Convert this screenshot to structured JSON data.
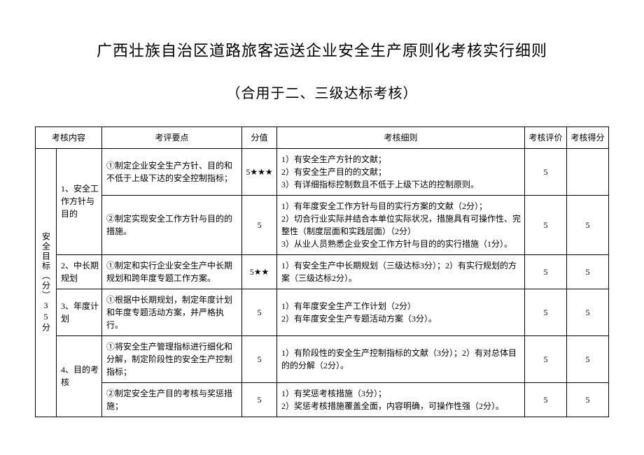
{
  "title": "广西壮族自治区道路旅客运送企业安全生产原则化考核实行细则",
  "subtitle": "（合用于二、三级达标考核）",
  "headers": {
    "category": "考核内容",
    "point": "考评要点",
    "score": "分值",
    "detail": "考核细则",
    "eval": "考核评价",
    "result": "考核得分"
  },
  "categoryLabel": "安全目标（分）35分",
  "rows": [
    {
      "item": "1、安全工作方针与目的",
      "point": "①制定企业安全生产方针、目的和不低于上级下达的安全控制指标；",
      "score": "5★★★",
      "detail": "1）有安全生产方针的文献；\n2）有安全生产目的的文献；\n3）有详细指标控制数且不低于上级下达的控制原则。",
      "eval": "5",
      "result": ""
    },
    {
      "item": "",
      "point": "②制定实现安全工作方针与目的的措施。",
      "score": "5",
      "detail": "1）有年度安全工作方针与目的实行方案的文献（2分）；\n2）切合行业实际并结合本单位实际状况，措施具有可操作性、完整性（制度层面和实践层面）（2分）\n3）从业人员熟悉企业安全工作方针与目的的实行措施（1分）。",
      "eval": "5",
      "result": "5"
    },
    {
      "item": "2、中长期规划",
      "point": "①制定和实行企业安全生产中长期规划和跨年度专题工作方案。",
      "score": "5★★",
      "detail": "1）有安全生产中长期规划（三级达标3分）；2）有实行规划的方案（三级达标2分）。",
      "eval": "5",
      "result": "5"
    },
    {
      "item": "3、年度计划",
      "point": "①根据中长期规划，制定年度计划和年度专题活动方案，并严格执行。",
      "score": "5",
      "detail": "1）有年度安全生产工作计划（2分）\n2）有年度安全生产专题活动方案（3分）。",
      "eval": "5",
      "result": "5"
    },
    {
      "item": "4、目的考核",
      "point": "①将安全生产管理指标进行细化和分解，制定阶段性的安全生产控制指标；",
      "score": "5",
      "detail": "1）有阶段性的安全生产控制指标的文献（3分）；2）有对总体目的的分解（2分）。",
      "eval": "5",
      "result": "5"
    },
    {
      "item": "",
      "point": "②制定安全生产目的考核与奖惩措施；",
      "score": "5",
      "detail": "1）有奖惩考核措施（3分）；\n2）奖惩考核措施覆盖全面，内容明确，可操作性强（2分）。",
      "eval": "5",
      "result": "5"
    }
  ]
}
